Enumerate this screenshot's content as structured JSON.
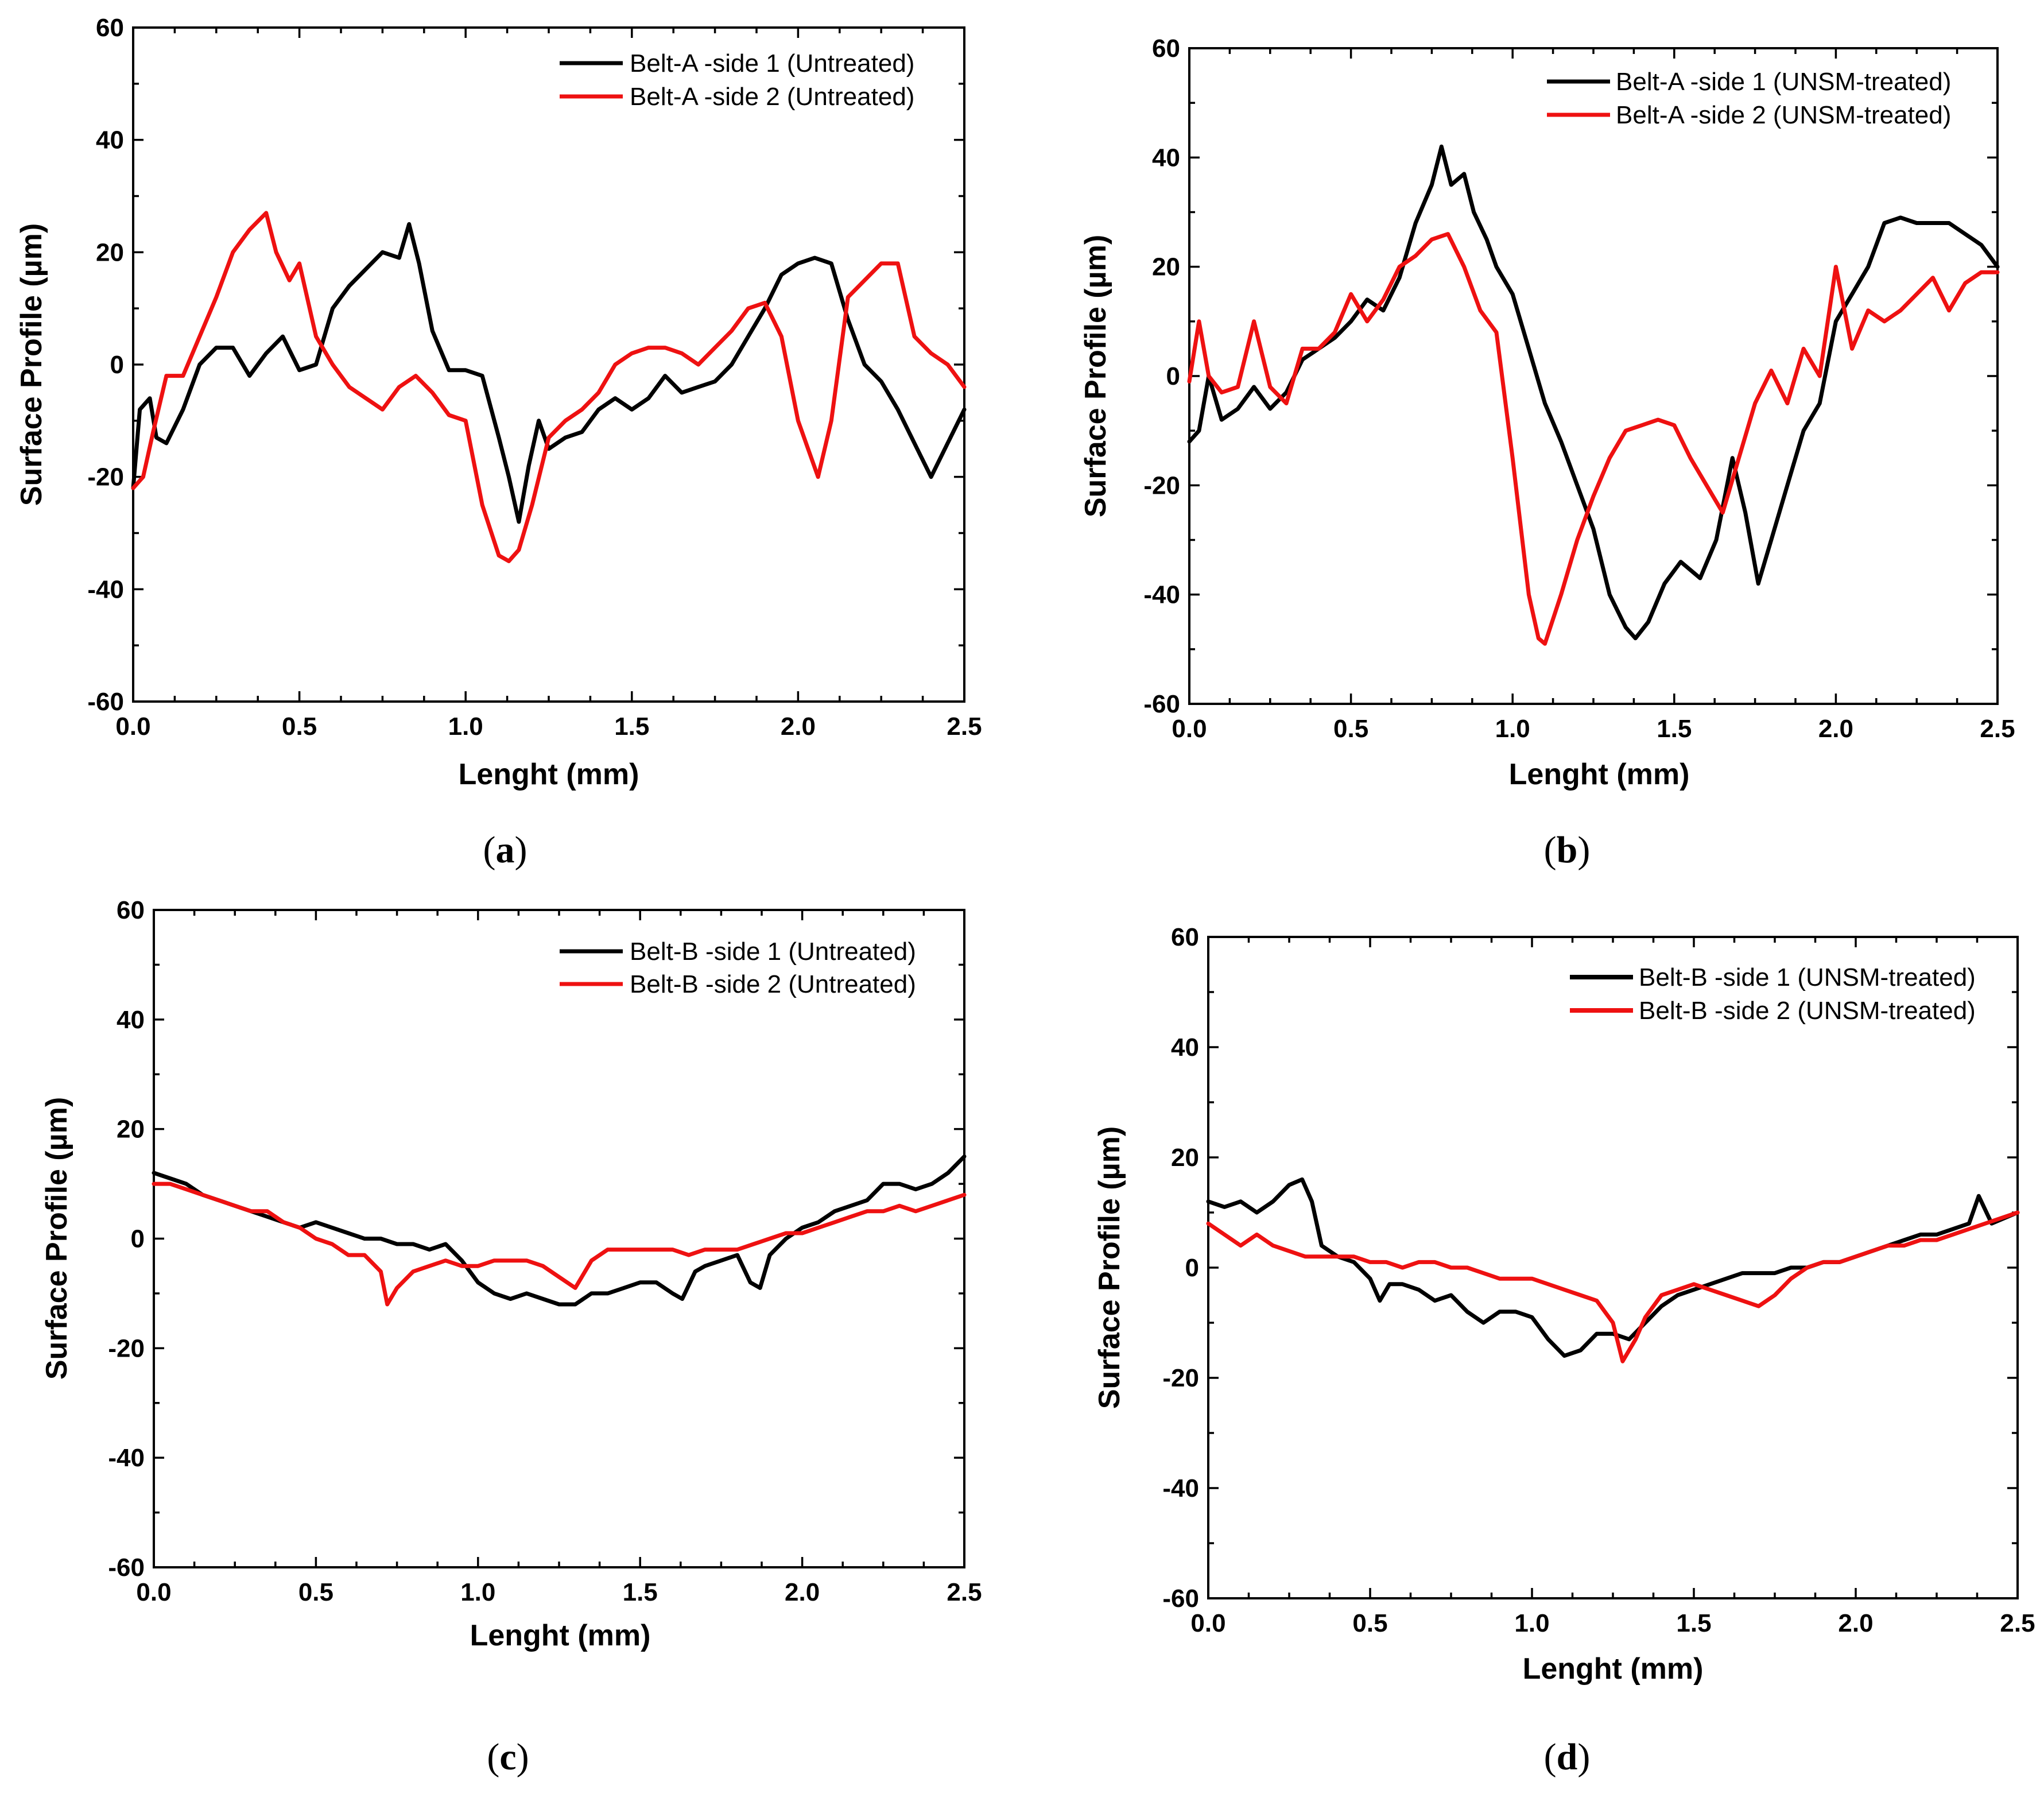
{
  "figure": {
    "captions": [
      {
        "open": "(",
        "letter": "a",
        "close": ")"
      },
      {
        "open": "(",
        "letter": "b",
        "close": ")"
      },
      {
        "open": "(",
        "letter": "c",
        "close": ")"
      },
      {
        "open": "(",
        "letter": "d",
        "close": ")"
      }
    ]
  },
  "colors": {
    "side1": "#000000",
    "side2": "#ee1111"
  },
  "chart_data": [
    {
      "id": "a",
      "type": "line",
      "xlabel": "Lenght (mm)",
      "ylabel": "Surface Profile (µm)",
      "xlim": [
        0,
        2.5
      ],
      "ylim": [
        -60,
        60
      ],
      "xticks": [
        0.0,
        0.5,
        1.0,
        1.5,
        2.0,
        2.5
      ],
      "xtick_labels": [
        "0.0",
        "0.5",
        "1.0",
        "1.5",
        "2.0",
        "2.5"
      ],
      "yticks": [
        -60,
        -40,
        -20,
        0,
        20,
        40,
        60
      ],
      "ytick_labels": [
        "-60",
        "-40",
        "-20",
        "0",
        "20",
        "40",
        "60"
      ],
      "legend_position": "top-right",
      "series": [
        {
          "name": "Belt-A -side 1 (Untreated)",
          "color": "#000000",
          "x": [
            0,
            0.02,
            0.05,
            0.07,
            0.1,
            0.15,
            0.2,
            0.25,
            0.3,
            0.35,
            0.4,
            0.45,
            0.5,
            0.55,
            0.6,
            0.65,
            0.7,
            0.75,
            0.8,
            0.83,
            0.86,
            0.9,
            0.95,
            1.0,
            1.05,
            1.1,
            1.13,
            1.16,
            1.19,
            1.22,
            1.25,
            1.3,
            1.35,
            1.4,
            1.45,
            1.5,
            1.55,
            1.6,
            1.65,
            1.7,
            1.75,
            1.8,
            1.85,
            1.9,
            1.95,
            2.0,
            2.05,
            2.1,
            2.15,
            2.2,
            2.25,
            2.3,
            2.35,
            2.4,
            2.45,
            2.5
          ],
          "y": [
            -22,
            -8,
            -6,
            -13,
            -14,
            -8,
            0,
            3,
            3,
            -2,
            2,
            5,
            -1,
            0,
            10,
            14,
            17,
            20,
            19,
            25,
            18,
            6,
            -1,
            -1,
            -2,
            -13,
            -20,
            -28,
            -18,
            -10,
            -15,
            -13,
            -12,
            -8,
            -6,
            -8,
            -6,
            -2,
            -5,
            -4,
            -3,
            0,
            5,
            10,
            16,
            18,
            19,
            18,
            8,
            0,
            -3,
            -8,
            -14,
            -20,
            -14,
            -8
          ]
        },
        {
          "name": "Belt-A -side 2 (Untreated)",
          "color": "#ee1111",
          "x": [
            0,
            0.03,
            0.06,
            0.1,
            0.15,
            0.2,
            0.25,
            0.3,
            0.35,
            0.4,
            0.43,
            0.47,
            0.5,
            0.55,
            0.6,
            0.65,
            0.7,
            0.75,
            0.8,
            0.85,
            0.9,
            0.95,
            1.0,
            1.05,
            1.1,
            1.13,
            1.16,
            1.2,
            1.25,
            1.3,
            1.35,
            1.4,
            1.45,
            1.5,
            1.55,
            1.6,
            1.65,
            1.7,
            1.75,
            1.8,
            1.85,
            1.9,
            1.95,
            2.0,
            2.03,
            2.06,
            2.1,
            2.15,
            2.2,
            2.25,
            2.3,
            2.35,
            2.4,
            2.45,
            2.5
          ],
          "y": [
            -22,
            -20,
            -12,
            -2,
            -2,
            5,
            12,
            20,
            24,
            27,
            20,
            15,
            18,
            5,
            0,
            -4,
            -6,
            -8,
            -4,
            -2,
            -5,
            -9,
            -10,
            -25,
            -34,
            -35,
            -33,
            -25,
            -13,
            -10,
            -8,
            -5,
            0,
            2,
            3,
            3,
            2,
            0,
            3,
            6,
            10,
            11,
            5,
            -10,
            -15,
            -20,
            -10,
            12,
            15,
            18,
            18,
            5,
            2,
            0,
            -4
          ]
        }
      ]
    },
    {
      "id": "b",
      "type": "line",
      "xlabel": "Lenght (mm)",
      "ylabel": "Surface Profile (µm)",
      "xlim": [
        0,
        2.5
      ],
      "ylim": [
        -60,
        60
      ],
      "xticks": [
        0.0,
        0.5,
        1.0,
        1.5,
        2.0,
        2.5
      ],
      "xtick_labels": [
        "0.0",
        "0.5",
        "1.0",
        "1.5",
        "2.0",
        "2.5"
      ],
      "yticks": [
        -60,
        -40,
        -20,
        0,
        20,
        40,
        60
      ],
      "ytick_labels": [
        "-60",
        "-40",
        "-20",
        "0",
        "20",
        "40",
        "60"
      ],
      "legend_position": "top-right",
      "series": [
        {
          "name": "Belt-A -side 1 (UNSM-treated)",
          "color": "#000000",
          "x": [
            0,
            0.03,
            0.06,
            0.1,
            0.15,
            0.2,
            0.25,
            0.3,
            0.35,
            0.4,
            0.45,
            0.5,
            0.55,
            0.6,
            0.65,
            0.7,
            0.75,
            0.78,
            0.81,
            0.85,
            0.88,
            0.92,
            0.95,
            1.0,
            1.05,
            1.1,
            1.15,
            1.2,
            1.25,
            1.3,
            1.35,
            1.38,
            1.42,
            1.47,
            1.52,
            1.58,
            1.63,
            1.68,
            1.72,
            1.76,
            1.8,
            1.85,
            1.9,
            1.95,
            2.0,
            2.05,
            2.1,
            2.15,
            2.2,
            2.25,
            2.3,
            2.35,
            2.4,
            2.45,
            2.5
          ],
          "y": [
            -12,
            -10,
            0,
            -8,
            -6,
            -2,
            -6,
            -3,
            3,
            5,
            7,
            10,
            14,
            12,
            18,
            28,
            35,
            42,
            35,
            37,
            30,
            25,
            20,
            15,
            5,
            -5,
            -12,
            -20,
            -28,
            -40,
            -46,
            -48,
            -45,
            -38,
            -34,
            -37,
            -30,
            -15,
            -25,
            -38,
            -30,
            -20,
            -10,
            -5,
            10,
            15,
            20,
            28,
            29,
            28,
            28,
            28,
            26,
            24,
            20
          ]
        },
        {
          "name": "Belt-A -side 2 (UNSM-treated)",
          "color": "#ee1111",
          "x": [
            0,
            0.03,
            0.06,
            0.1,
            0.15,
            0.2,
            0.25,
            0.3,
            0.35,
            0.4,
            0.45,
            0.5,
            0.55,
            0.6,
            0.65,
            0.7,
            0.75,
            0.8,
            0.85,
            0.9,
            0.95,
            1.0,
            1.05,
            1.08,
            1.1,
            1.15,
            1.2,
            1.25,
            1.3,
            1.35,
            1.4,
            1.45,
            1.5,
            1.55,
            1.6,
            1.65,
            1.7,
            1.75,
            1.8,
            1.85,
            1.9,
            1.95,
            2.0,
            2.05,
            2.1,
            2.15,
            2.2,
            2.25,
            2.3,
            2.35,
            2.4,
            2.45,
            2.5
          ],
          "y": [
            -1,
            10,
            0,
            -3,
            -2,
            10,
            -2,
            -5,
            5,
            5,
            8,
            15,
            10,
            14,
            20,
            22,
            25,
            26,
            20,
            12,
            8,
            -15,
            -40,
            -48,
            -49,
            -40,
            -30,
            -22,
            -15,
            -10,
            -9,
            -8,
            -9,
            -15,
            -20,
            -25,
            -15,
            -5,
            1,
            -5,
            5,
            0,
            20,
            5,
            12,
            10,
            12,
            15,
            18,
            12,
            17,
            19,
            19
          ]
        }
      ]
    },
    {
      "id": "c",
      "type": "line",
      "xlabel": "Lenght (mm)",
      "ylabel": "Surface Profile (µm)",
      "xlim": [
        0,
        2.5
      ],
      "ylim": [
        -60,
        60
      ],
      "xticks": [
        0.0,
        0.5,
        1.0,
        1.5,
        2.0,
        2.5
      ],
      "xtick_labels": [
        "0.0",
        "0.5",
        "1.0",
        "1.5",
        "2.0",
        "2.5"
      ],
      "yticks": [
        -60,
        -40,
        -20,
        0,
        20,
        40,
        60
      ],
      "ytick_labels": [
        "-60",
        "-40",
        "-20",
        "0",
        "20",
        "40",
        "60"
      ],
      "legend_position": "top-right",
      "series": [
        {
          "name": "Belt-B -side 1 (Untreated)",
          "color": "#000000",
          "x": [
            0,
            0.05,
            0.1,
            0.15,
            0.2,
            0.25,
            0.3,
            0.35,
            0.4,
            0.45,
            0.5,
            0.55,
            0.6,
            0.65,
            0.7,
            0.75,
            0.8,
            0.85,
            0.9,
            0.95,
            1.0,
            1.05,
            1.1,
            1.15,
            1.2,
            1.25,
            1.3,
            1.35,
            1.4,
            1.45,
            1.5,
            1.55,
            1.6,
            1.63,
            1.67,
            1.7,
            1.75,
            1.8,
            1.84,
            1.87,
            1.9,
            1.95,
            2.0,
            2.05,
            2.1,
            2.15,
            2.2,
            2.25,
            2.3,
            2.35,
            2.4,
            2.45,
            2.5
          ],
          "y": [
            12,
            11,
            10,
            8,
            7,
            6,
            5,
            4,
            3,
            2,
            3,
            2,
            1,
            0,
            0,
            -1,
            -1,
            -2,
            -1,
            -4,
            -8,
            -10,
            -11,
            -10,
            -11,
            -12,
            -12,
            -10,
            -10,
            -9,
            -8,
            -8,
            -10,
            -11,
            -6,
            -5,
            -4,
            -3,
            -8,
            -9,
            -3,
            0,
            2,
            3,
            5,
            6,
            7,
            10,
            10,
            9,
            10,
            12,
            15
          ]
        },
        {
          "name": "Belt-B -side 2 (Untreated)",
          "color": "#ee1111",
          "x": [
            0,
            0.05,
            0.1,
            0.15,
            0.2,
            0.25,
            0.3,
            0.35,
            0.4,
            0.45,
            0.5,
            0.55,
            0.6,
            0.65,
            0.7,
            0.72,
            0.75,
            0.8,
            0.85,
            0.9,
            0.95,
            1.0,
            1.05,
            1.1,
            1.15,
            1.2,
            1.25,
            1.3,
            1.35,
            1.4,
            1.45,
            1.5,
            1.55,
            1.6,
            1.65,
            1.7,
            1.75,
            1.8,
            1.85,
            1.9,
            1.95,
            2.0,
            2.05,
            2.1,
            2.15,
            2.2,
            2.25,
            2.3,
            2.35,
            2.4,
            2.45,
            2.5
          ],
          "y": [
            10,
            10,
            9,
            8,
            7,
            6,
            5,
            5,
            3,
            2,
            0,
            -1,
            -3,
            -3,
            -6,
            -12,
            -9,
            -6,
            -5,
            -4,
            -5,
            -5,
            -4,
            -4,
            -4,
            -5,
            -7,
            -9,
            -4,
            -2,
            -2,
            -2,
            -2,
            -2,
            -3,
            -2,
            -2,
            -2,
            -1,
            0,
            1,
            1,
            2,
            3,
            4,
            5,
            5,
            6,
            5,
            6,
            7,
            8
          ]
        }
      ]
    },
    {
      "id": "d",
      "type": "line",
      "xlabel": "Lenght (mm)",
      "ylabel": "Surface Profile (µm)",
      "xlim": [
        0,
        2.5
      ],
      "ylim": [
        -60,
        60
      ],
      "xticks": [
        0.0,
        0.5,
        1.0,
        1.5,
        2.0,
        2.5
      ],
      "xtick_labels": [
        "0.0",
        "0.5",
        "1.0",
        "1.5",
        "2.0",
        "2.5"
      ],
      "yticks": [
        -60,
        -40,
        -20,
        0,
        20,
        40,
        60
      ],
      "ytick_labels": [
        "-60",
        "-40",
        "-20",
        "0",
        "20",
        "40",
        "60"
      ],
      "legend_position": "top-right",
      "series": [
        {
          "name": "Belt-B -side 1 (UNSM-treated)",
          "color": "#000000",
          "x": [
            0,
            0.05,
            0.1,
            0.15,
            0.2,
            0.25,
            0.29,
            0.32,
            0.35,
            0.4,
            0.45,
            0.5,
            0.53,
            0.56,
            0.6,
            0.65,
            0.7,
            0.75,
            0.8,
            0.85,
            0.9,
            0.95,
            1.0,
            1.05,
            1.1,
            1.15,
            1.2,
            1.25,
            1.3,
            1.35,
            1.4,
            1.45,
            1.5,
            1.55,
            1.6,
            1.65,
            1.7,
            1.75,
            1.8,
            1.85,
            1.9,
            1.95,
            2.0,
            2.05,
            2.1,
            2.15,
            2.2,
            2.25,
            2.3,
            2.35,
            2.38,
            2.42,
            2.5
          ],
          "y": [
            12,
            11,
            12,
            10,
            12,
            15,
            16,
            12,
            4,
            2,
            1,
            -2,
            -6,
            -3,
            -3,
            -4,
            -6,
            -5,
            -8,
            -10,
            -8,
            -8,
            -9,
            -13,
            -16,
            -15,
            -12,
            -12,
            -13,
            -10,
            -7,
            -5,
            -4,
            -3,
            -2,
            -1,
            -1,
            -1,
            0,
            0,
            1,
            1,
            2,
            3,
            4,
            5,
            6,
            6,
            7,
            8,
            13,
            8,
            10
          ]
        },
        {
          "name": "Belt-B -side 2 (UNSM-treated)",
          "color": "#ee1111",
          "x": [
            0,
            0.05,
            0.1,
            0.15,
            0.2,
            0.25,
            0.3,
            0.35,
            0.4,
            0.45,
            0.5,
            0.55,
            0.6,
            0.65,
            0.7,
            0.75,
            0.8,
            0.85,
            0.9,
            0.95,
            1.0,
            1.05,
            1.1,
            1.15,
            1.2,
            1.25,
            1.28,
            1.32,
            1.35,
            1.4,
            1.45,
            1.5,
            1.55,
            1.6,
            1.65,
            1.7,
            1.75,
            1.8,
            1.85,
            1.9,
            1.95,
            2.0,
            2.05,
            2.1,
            2.15,
            2.2,
            2.25,
            2.3,
            2.35,
            2.4,
            2.45,
            2.5
          ],
          "y": [
            8,
            6,
            4,
            6,
            4,
            3,
            2,
            2,
            2,
            2,
            1,
            1,
            0,
            1,
            1,
            0,
            0,
            -1,
            -2,
            -2,
            -2,
            -3,
            -4,
            -5,
            -6,
            -10,
            -17,
            -13,
            -9,
            -5,
            -4,
            -3,
            -4,
            -5,
            -6,
            -7,
            -5,
            -2,
            0,
            1,
            1,
            2,
            3,
            4,
            4,
            5,
            5,
            6,
            7,
            8,
            9,
            10
          ]
        }
      ]
    }
  ]
}
